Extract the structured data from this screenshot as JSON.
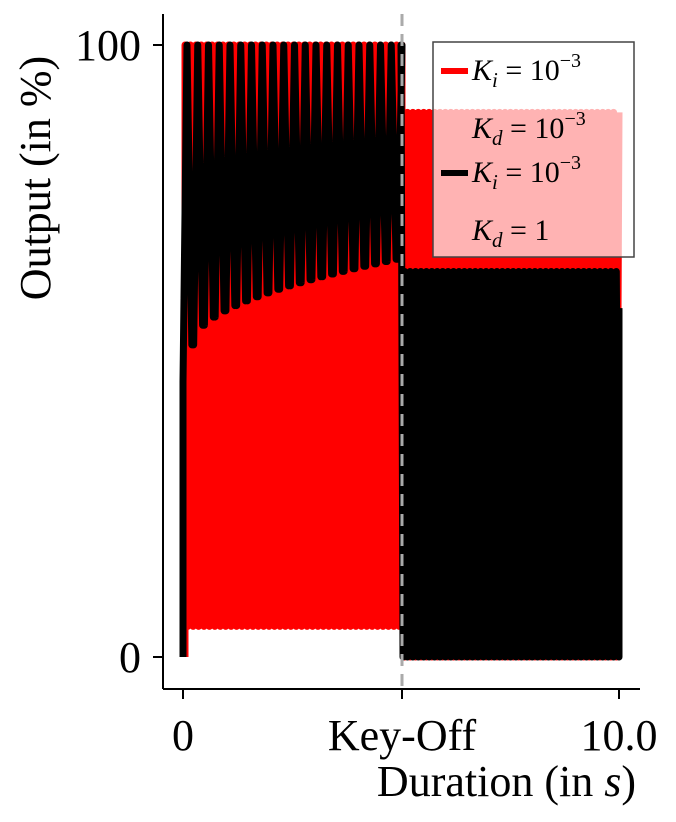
{
  "chart_data": {
    "type": "line",
    "xlabel_prefix": "Duration (in ",
    "xlabel_var": "s",
    "xlabel_suffix": ")",
    "ylabel": "Output (in %)",
    "x_ticks": [
      "0",
      "Key-Off",
      "10.0"
    ],
    "y_ticks": [
      "0",
      "100"
    ],
    "xlim": [
      0,
      10
    ],
    "ylim": [
      0,
      100
    ],
    "key_off_x": 5.0,
    "grid": false,
    "legend_position": "top-right",
    "legend": [
      {
        "k1_sym": "K",
        "k1_sub": "i",
        "k1_val": "= 10",
        "k1_exp": "−3",
        "k2_sym": "K",
        "k2_sub": "d",
        "k2_val": "= 10",
        "k2_exp": "−3",
        "color": "#ff0000"
      },
      {
        "k1_sym": "K",
        "k1_sub": "i",
        "k1_val": "= 10",
        "k1_exp": "−3",
        "k2_sym": "K",
        "k2_sub": "d",
        "k2_val": "= 1",
        "k2_exp": "",
        "color": "#000000"
      }
    ],
    "series": [
      {
        "color": "#ff0000",
        "cycles_on": 40,
        "cycles_off": 40,
        "on_high": 100,
        "on_low": 5,
        "off_high": 89,
        "off_low": 0
      },
      {
        "color": "#000000",
        "cycles_on": 20,
        "cycles_off": 40,
        "on_high": 100,
        "on_low_start": 51,
        "on_low_end": 65,
        "spike_start": 63,
        "spike_end": 73,
        "off_high": 63,
        "off_low": 0
      }
    ]
  }
}
